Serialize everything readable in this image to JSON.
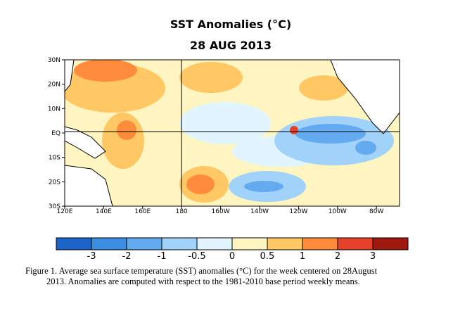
{
  "title": "SST Anomalies (°C)",
  "subtitle": "28 AUG 2013",
  "map": {
    "lat_labels": [
      "30N",
      "20N",
      "10N",
      "EQ",
      "10S",
      "20S",
      "30S"
    ],
    "lon_labels": [
      "120E",
      "140E",
      "160E",
      "180",
      "160W",
      "140W",
      "120W",
      "100W",
      "80W"
    ]
  },
  "colorbar": {
    "colors": [
      "#1c64c8",
      "#3c8ce0",
      "#64aaf0",
      "#a0d2fa",
      "#e0f5ff",
      "#fff5c0",
      "#ffc864",
      "#ff8c3c",
      "#e6412a",
      "#a0190f"
    ],
    "ticks": [
      -3,
      -2,
      -1,
      -0.5,
      0,
      0.5,
      1,
      2,
      3
    ]
  },
  "caption": [
    "Figure 1. Average sea surface temperature (SST) anomalies (°C) for the week centered on 28August",
    "2013.   Anomalies are computed with respect to the 1981-2010 base period weekly means."
  ]
}
